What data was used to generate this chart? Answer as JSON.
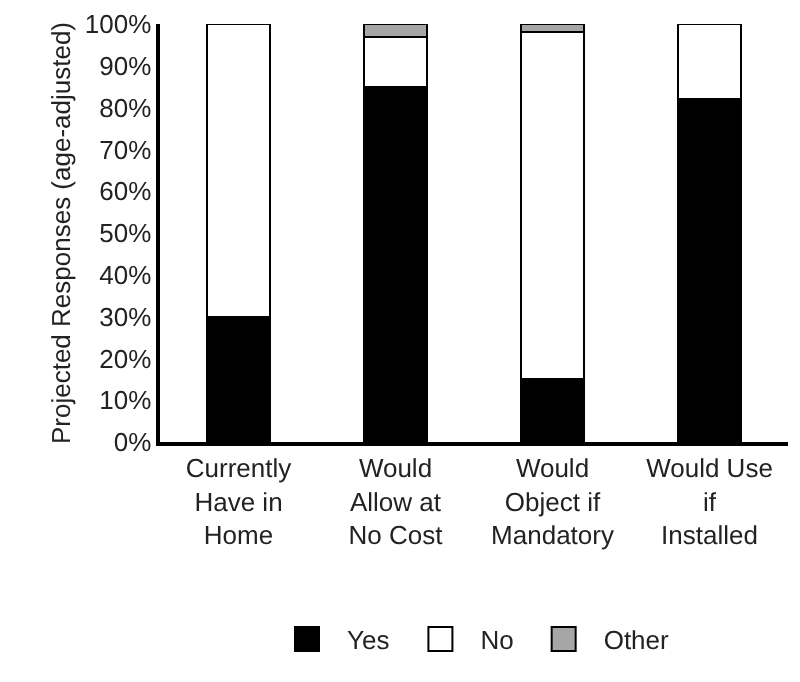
{
  "chart_data": {
    "type": "bar",
    "stacked": true,
    "ylabel": "Projected Responses (age-adjusted)",
    "categories": [
      "Currently Have in Home",
      "Would Allow at No Cost",
      "Would Object if Mandatory",
      "Would Use if Installed"
    ],
    "series": [
      {
        "name": "Yes",
        "color": "#000000",
        "values": [
          30,
          85,
          15,
          82
        ]
      },
      {
        "name": "No",
        "color": "#ffffff",
        "values": [
          70,
          12,
          83,
          18
        ]
      },
      {
        "name": "Other",
        "color": "#a6a6a6",
        "values": [
          null,
          3,
          2,
          null
        ]
      }
    ],
    "ylim": [
      0,
      100
    ],
    "yticks": [
      {
        "value": 0,
        "label": "0%"
      },
      {
        "value": 10,
        "label": "10%"
      },
      {
        "value": 20,
        "label": "20%"
      },
      {
        "value": 30,
        "label": "30%"
      },
      {
        "value": 40,
        "label": "40%"
      },
      {
        "value": 50,
        "label": "50%"
      },
      {
        "value": 60,
        "label": "60%"
      },
      {
        "value": 70,
        "label": "70%"
      },
      {
        "value": 80,
        "label": "80%"
      },
      {
        "value": 90,
        "label": "90%"
      },
      {
        "value": 100,
        "label": "100%"
      }
    ],
    "grid": false,
    "legend": "bottom"
  }
}
